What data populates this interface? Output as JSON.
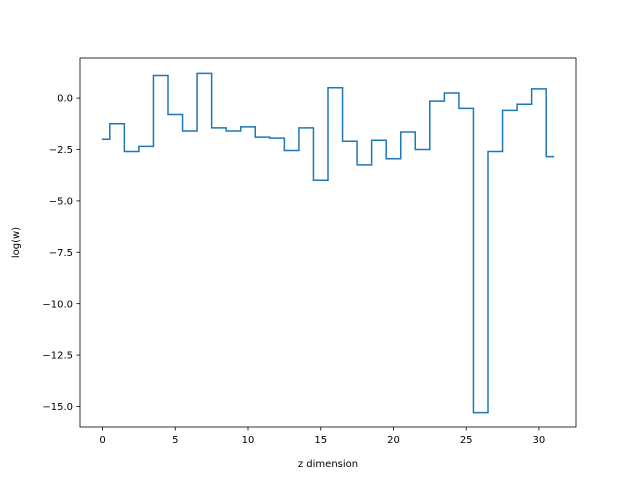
{
  "chart_data": {
    "type": "line",
    "step": "mid",
    "xlabel": "z dimension",
    "ylabel": "log(w)",
    "xlim": [
      -1.55,
      32.55
    ],
    "ylim": [
      -16.0,
      1.95
    ],
    "x_ticks": [
      0,
      5,
      10,
      15,
      20,
      25,
      30
    ],
    "x_tick_labels": [
      "0",
      "5",
      "10",
      "15",
      "20",
      "25",
      "30"
    ],
    "y_ticks": [
      0.0,
      -2.5,
      -5.0,
      -7.5,
      -10.0,
      -12.5,
      -15.0
    ],
    "y_tick_labels": [
      "0.0",
      "−2.5",
      "−5.0",
      "−7.5",
      "−10.0",
      "−12.5",
      "−15.0"
    ],
    "grid": false,
    "series": [
      {
        "color": "#1f77b4",
        "x": [
          0,
          1,
          2,
          3,
          4,
          5,
          6,
          7,
          8,
          9,
          10,
          11,
          12,
          13,
          14,
          15,
          16,
          17,
          18,
          19,
          20,
          21,
          22,
          23,
          24,
          25,
          26,
          27,
          28,
          29,
          30,
          31
        ],
        "y": [
          -2.0,
          -1.25,
          -2.6,
          -2.35,
          1.1,
          -0.8,
          -1.6,
          1.2,
          -1.45,
          -1.6,
          -1.4,
          -1.9,
          -1.95,
          -2.55,
          -1.45,
          -4.0,
          0.5,
          -2.1,
          -3.25,
          -2.05,
          -2.95,
          -1.65,
          -2.5,
          -0.15,
          0.25,
          -0.5,
          -15.3,
          -2.6,
          -0.6,
          -0.3,
          0.45,
          -2.85
        ]
      }
    ]
  }
}
